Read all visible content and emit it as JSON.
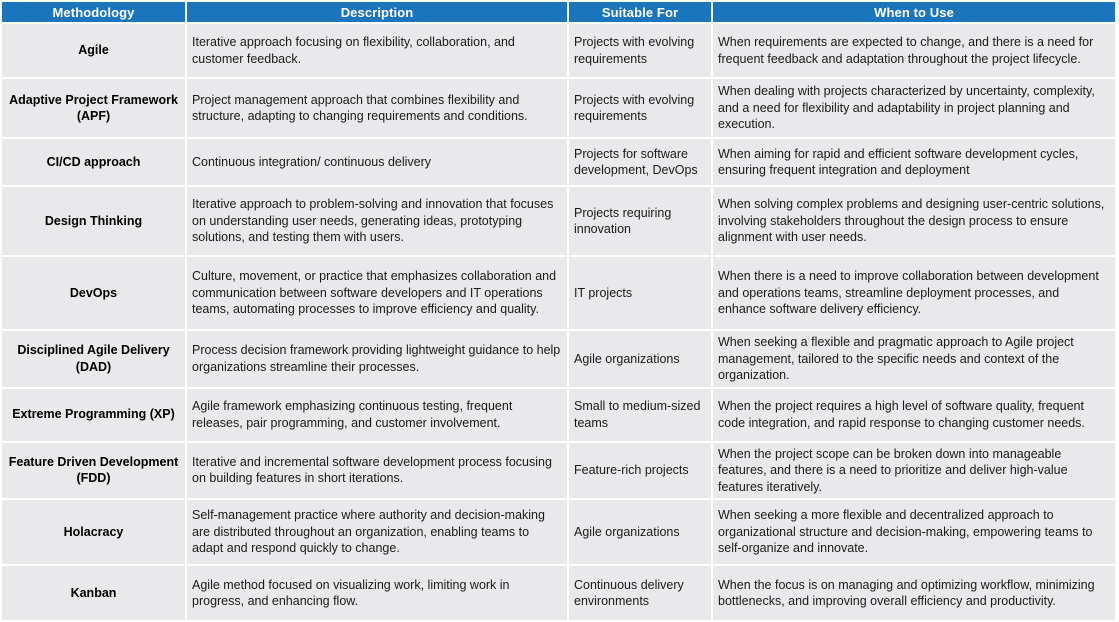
{
  "colors": {
    "header_bg": "#1b75bc",
    "header_text": "#ffffff",
    "row_bg": "#e9e9ec",
    "body_text": "#1a1a1a",
    "gridline": "#ffffff"
  },
  "table": {
    "columns": [
      "Methodology",
      "Description",
      "Suitable For",
      "When to Use"
    ],
    "rows": [
      [
        "Agile",
        " Iterative approach focusing on flexibility, collaboration, and customer feedback.",
        "Projects with evolving requirements",
        "When requirements are expected to change, and there is a need for frequent feedback and adaptation throughout the project lifecycle."
      ],
      [
        "Adaptive Project Framework (APF)",
        "Project management approach that combines flexibility and structure, adapting to changing requirements and conditions.",
        "Projects with evolving requirements",
        "When dealing with projects characterized by uncertainty, complexity, and a need for flexibility and adaptability in project planning and execution."
      ],
      [
        "CI/CD approach",
        "Continuous integration/ continuous delivery",
        "Projects for software development, DevOps",
        "When aiming for rapid and efficient software development cycles, ensuring frequent integration and deployment"
      ],
      [
        "Design Thinking",
        "Iterative approach to problem-solving and innovation that focuses on understanding user needs, generating ideas, prototyping solutions, and testing them with users.",
        "Projects requiring innovation",
        "When solving complex problems and designing user-centric solutions, involving stakeholders throughout the design process to ensure alignment with user needs."
      ],
      [
        "DevOps",
        "Culture, movement, or practice that emphasizes collaboration and communication between software developers and IT operations teams, automating processes to improve efficiency and quality.",
        "IT projects",
        "When there is a need to improve collaboration between development and operations teams, streamline deployment processes, and enhance software delivery efficiency."
      ],
      [
        "Disciplined Agile Delivery (DAD)",
        "Process decision framework providing lightweight guidance to help organizations streamline their processes.",
        "Agile organizations",
        "When seeking a flexible and pragmatic approach to Agile project management, tailored to the specific needs and context of the organization."
      ],
      [
        "Extreme Programming (XP)",
        "Agile framework emphasizing continuous testing, frequent releases, pair programming, and customer involvement.",
        "Small to medium-sized teams",
        "When the project requires a high level of software quality, frequent code integration, and rapid response to changing customer needs."
      ],
      [
        "Feature Driven Development (FDD)",
        "Iterative and incremental software development process focusing on building features in short iterations.",
        "Feature-rich projects",
        "When the project scope can be broken down into manageable features, and there is a need to prioritize and deliver high-value features iteratively."
      ],
      [
        "Holacracy",
        "Self-management practice where authority and decision-making are distributed throughout an organization, enabling teams to adapt and respond quickly to change.",
        "Agile organizations",
        "When seeking a more flexible and decentralized approach to organizational structure and decision-making, empowering teams to self-organize and innovate."
      ],
      [
        "Kanban",
        "Agile method focused on visualizing work, limiting work in progress, and enhancing flow.",
        "Continuous delivery environments",
        "When the focus is on managing and optimizing workflow, minimizing bottlenecks, and improving overall efficiency and productivity."
      ]
    ]
  }
}
